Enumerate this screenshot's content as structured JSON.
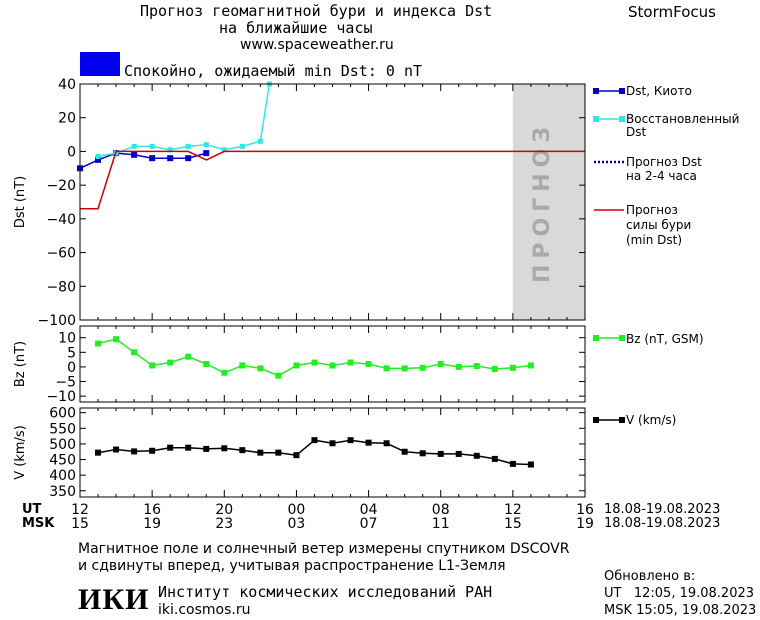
{
  "header": {
    "title_line1": "Прогноз геомагнитной бури и индекса Dst",
    "title_line2": "на ближайшие часы",
    "site": "www.spaceweather.ru",
    "brand": "StormFocus"
  },
  "status": {
    "text": "Спокойно, ожидаемый min Dst: 0 nT",
    "color": "#0000ee"
  },
  "forecast_zone_label": "ПРОГНОЗ",
  "legend": {
    "dst_kyoto": "Dst, Киото",
    "restored_line1": "Восстановленный",
    "restored_line2": "Dst",
    "forecast_line1": "Прогноз Dst",
    "forecast_line2": "на 2-4 часа",
    "storm_line1": "Прогноз",
    "storm_line2": "силы бури",
    "storm_line3": "(min Dst)",
    "bz": "Bz (nT, GSM)",
    "v": "V (km/s)"
  },
  "time_axis": {
    "ut_label": "UT",
    "msk_label": "MSK",
    "ut_ticks": [
      "12",
      "16",
      "20",
      "00",
      "04",
      "08",
      "12",
      "16"
    ],
    "msk_ticks": [
      "15",
      "19",
      "23",
      "03",
      "07",
      "11",
      "15",
      "19"
    ],
    "ut_range": "18.08-19.08.2023",
    "msk_range": "18.08-19.08.2023"
  },
  "footer": {
    "note_line1": "Магнитное поле и солнечный ветер измерены спутником DSCOVR",
    "note_line2": "и сдвинуты вперед, учитывая распространение L1-Земля",
    "logo": "ИКИ",
    "institute": "Институт космических исследований РАН",
    "institute_site": "iki.cosmos.ru",
    "updated_label": "Обновлено в:",
    "updated_ut": "UT   12:05, 19.08.2023",
    "updated_msk": "MSK 15:05, 19.08.2023"
  },
  "colors": {
    "dst_kyoto": "#0000cc",
    "restored": "#33e6e6",
    "forecast": "#0000cc",
    "storm": "#cc0000",
    "bz": "#22ee22",
    "v": "#000000",
    "forecast_zone": "#d9d9d9"
  },
  "chart_data": [
    {
      "type": "line",
      "ylabel": "Dst (nT)",
      "xlim_hours": [
        12,
        40
      ],
      "ylim": [
        -100,
        40
      ],
      "yticks": [
        40,
        20,
        0,
        -20,
        -40,
        -60,
        -80,
        -100
      ],
      "forecast_zone_hours": [
        36,
        40
      ],
      "series": [
        {
          "name": "Dst, Киото",
          "x": [
            12,
            13,
            14,
            15,
            16,
            17,
            18,
            19
          ],
          "y": [
            -10,
            -5,
            -1,
            -2,
            -4,
            -4,
            -4,
            -1
          ]
        },
        {
          "name": "Восстановленный Dst",
          "x": [
            13,
            14,
            15,
            16,
            17,
            18,
            19,
            20,
            21,
            22,
            22.5
          ],
          "y": [
            -3,
            -1,
            3,
            3,
            1,
            3,
            4,
            1,
            3,
            6,
            40
          ]
        },
        {
          "name": "Прогноз силы бури (min Dst)",
          "x": [
            12,
            13,
            14,
            15,
            16,
            17,
            18,
            19,
            20,
            40
          ],
          "y": [
            -34,
            -34,
            0,
            0,
            0,
            0,
            0,
            -5,
            0,
            0
          ]
        }
      ]
    },
    {
      "type": "line",
      "ylabel": "Bz (nT)",
      "xlim_hours": [
        12,
        40
      ],
      "ylim": [
        -12,
        14
      ],
      "yticks": [
        10,
        5,
        0,
        -5,
        -10
      ],
      "series": [
        {
          "name": "Bz (nT, GSM)",
          "x": [
            13,
            14,
            15,
            16,
            17,
            18,
            19,
            20,
            21,
            22,
            23,
            24,
            25,
            26,
            27,
            28,
            29,
            30,
            31,
            32,
            33,
            34,
            35,
            36,
            37
          ],
          "y": [
            8,
            9.5,
            5,
            0.5,
            1.5,
            3.5,
            1,
            -2,
            0.5,
            -0.5,
            -3,
            0.5,
            1.5,
            0.5,
            1.5,
            1,
            -0.5,
            -0.5,
            -0.3,
            1,
            0,
            0.3,
            -0.7,
            -0.3,
            0.5
          ]
        }
      ]
    },
    {
      "type": "line",
      "ylabel": "V (km/s)",
      "xlim_hours": [
        12,
        40
      ],
      "ylim": [
        330,
        615
      ],
      "yticks": [
        600,
        550,
        500,
        450,
        400,
        350
      ],
      "series": [
        {
          "name": "V (km/s)",
          "x": [
            13,
            14,
            15,
            16,
            17,
            18,
            19,
            20,
            21,
            22,
            23,
            24,
            25,
            26,
            27,
            28,
            29,
            30,
            31,
            32,
            33,
            34,
            35,
            36,
            37
          ],
          "y": [
            472,
            482,
            476,
            478,
            488,
            488,
            484,
            486,
            480,
            472,
            472,
            464,
            512,
            502,
            512,
            504,
            502,
            475,
            470,
            468,
            468,
            462,
            452,
            436,
            434
          ]
        }
      ]
    }
  ]
}
